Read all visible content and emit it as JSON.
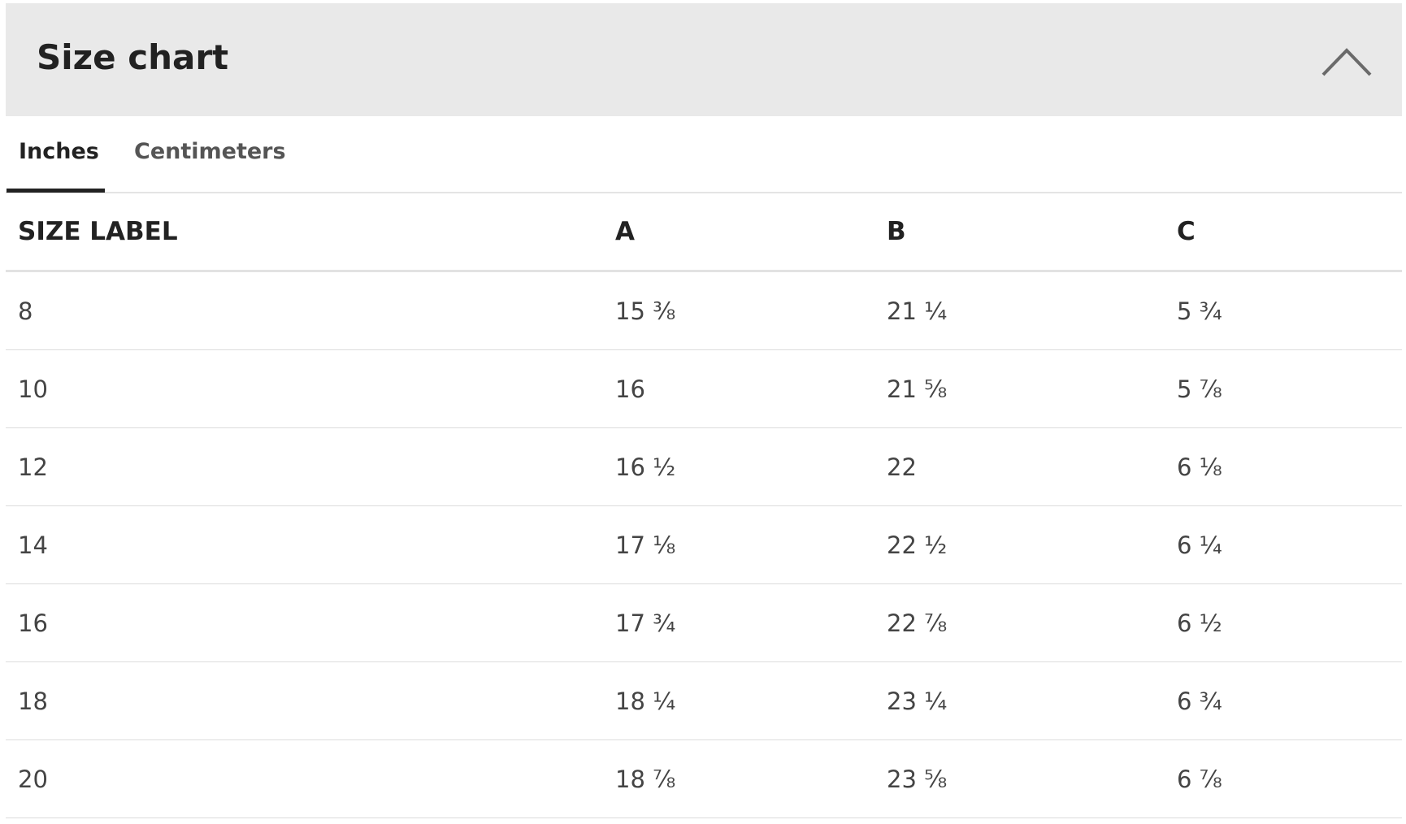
{
  "header": {
    "title": "Size chart"
  },
  "tabs": [
    "Inches",
    "Centimeters"
  ],
  "table": {
    "columns": [
      "SIZE LABEL",
      "A",
      "B",
      "C"
    ],
    "rows": [
      [
        "8",
        "15 ⅜",
        "21 ¼",
        "5 ¾"
      ],
      [
        "10",
        "16",
        "21 ⅝",
        "5 ⅞"
      ],
      [
        "12",
        "16 ½",
        "22",
        "6 ⅛"
      ],
      [
        "14",
        "17 ⅛",
        "22 ½",
        "6 ¼"
      ],
      [
        "16",
        "17 ¾",
        "22 ⅞",
        "6 ½"
      ],
      [
        "18",
        "18 ¼",
        "23 ¼",
        "6 ¾"
      ],
      [
        "20",
        "18 ⅞",
        "23 ⅝",
        "6 ⅞"
      ]
    ]
  }
}
